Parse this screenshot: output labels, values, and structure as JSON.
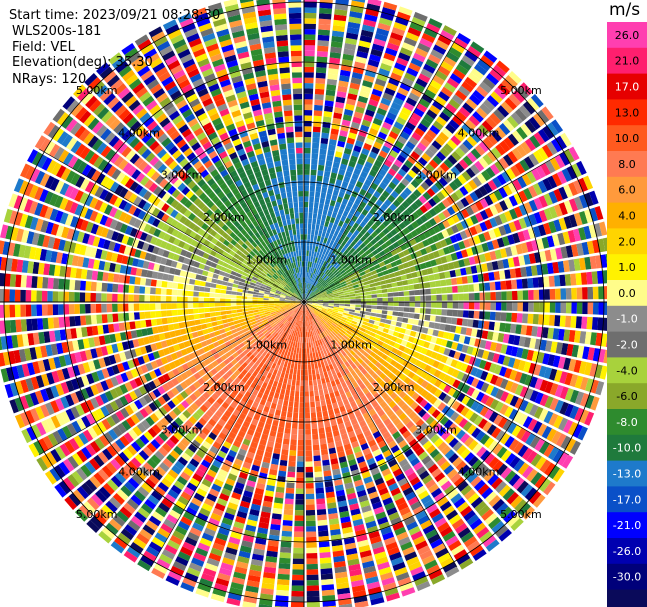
{
  "header": {
    "start_time": "Start time: 2023/09/21 08:28:30",
    "instrument": "WLS200s-181",
    "field": "Field: VEL",
    "elevation": "Elevation(deg): 35.30",
    "nrays": "NRays: 120"
  },
  "chart_data": {
    "type": "heatmap",
    "projection": "polar-ppi",
    "field": "VEL",
    "units": "m/s",
    "nrays": 120,
    "elevation_deg": 35.3,
    "range_rings_km": [
      1.0,
      2.0,
      3.0,
      4.0,
      5.0
    ],
    "range_labels": [
      "1.00km",
      "2.00km",
      "3.00km",
      "4.00km",
      "5.00km"
    ],
    "max_range_km": 5.1,
    "colorbar": {
      "ticks": [
        "26.0",
        "21.0",
        "17.0",
        "13.0",
        "10.0",
        "8.0",
        "6.0",
        "4.0",
        "2.0",
        "1.0",
        "0.0",
        "-1.0",
        "-2.0",
        "-4.0",
        "-6.0",
        "-8.0",
        "-10.0",
        "-13.0",
        "-17.0",
        "-21.0",
        "-26.0",
        "-30.0"
      ],
      "colors": [
        "#ff3fb0",
        "#ff1f6e",
        "#e60000",
        "#ff2a00",
        "#ff5a1f",
        "#ff7a52",
        "#ff9a3c",
        "#ffb000",
        "#ffd400",
        "#fff200",
        "#fffd8a",
        "#8c8c8c",
        "#6e6e6e",
        "#a8d23c",
        "#8aa82a",
        "#2e8b2e",
        "#1f7a3c",
        "#1e7acb",
        "#0a50c8",
        "#0000ff",
        "#0000b0",
        "#00007a",
        "#0a0a5a"
      ]
    },
    "structure": {
      "inner_region_km": 2.7,
      "approaching_sector": "north-west",
      "receding_sector": "south-south-east",
      "outer_region": "noise"
    }
  }
}
